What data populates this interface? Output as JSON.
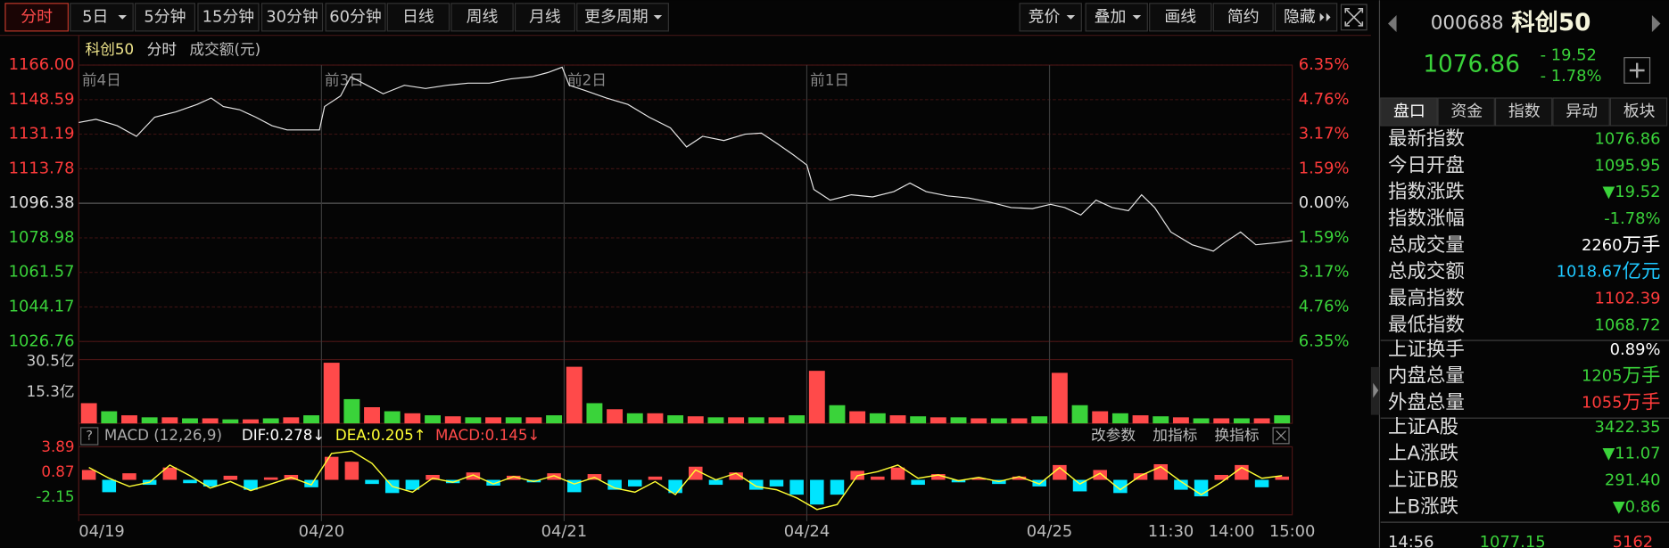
{
  "toolbar": {
    "left": [
      "分时",
      "5日",
      "5分钟",
      "15分钟",
      "30分钟",
      "60分钟",
      "日线",
      "周线",
      "月线",
      "更多周期"
    ],
    "right": [
      "竞价",
      "叠加",
      "画线",
      "简约",
      "隐藏"
    ]
  },
  "chart_data": {
    "type": "line",
    "title": "科创50",
    "subtitle": "分时",
    "volume_label": "成交额(元)",
    "day_labels": [
      "前4日",
      "前3日",
      "前2日",
      "前1日"
    ],
    "x": [
      0,
      17,
      38,
      57,
      75,
      96,
      117,
      131,
      143,
      159,
      175,
      191,
      206,
      222,
      238,
      243,
      259,
      269,
      285,
      301,
      322,
      343,
      364,
      385,
      406,
      427,
      448,
      464,
      478,
      485,
      501,
      522,
      543,
      564,
      585,
      601,
      617,
      638,
      659,
      675,
      691,
      706,
      720,
      727,
      743,
      764,
      785,
      806,
      822,
      838,
      859,
      880,
      901,
      922,
      943,
      961,
      975,
      991,
      1006,
      1022,
      1038,
      1051,
      1064,
      1080,
      1101,
      1122,
      1133,
      1149,
      1164,
      1185,
      1200
    ],
    "values": [
      1137.08,
      1138.69,
      1135.48,
      1130.12,
      1139.76,
      1142.44,
      1146.19,
      1149.4,
      1145.12,
      1143.51,
      1139.76,
      1135.48,
      1133.33,
      1133.33,
      1133.33,
      1145.12,
      1150.47,
      1160.11,
      1155.83,
      1151.54,
      1155.83,
      1154.22,
      1155.83,
      1156.9,
      1156.9,
      1159.04,
      1160.11,
      1162.25,
      1164.93,
      1155.83,
      1153.15,
      1149.4,
      1146.19,
      1139.76,
      1134.41,
      1124.77,
      1130.12,
      1127.98,
      1131.19,
      1131.73,
      1126.37,
      1121.02,
      1115.67,
      1103.35,
      1098.0,
      1100.67,
      1099.6,
      1102.28,
      1106.57,
      1102.28,
      1100.14,
      1099.07,
      1096.93,
      1094.25,
      1093.71,
      1095.85,
      1094.25,
      1090.49,
      1097.99,
      1094.25,
      1092.64,
      1100.67,
      1094.25,
      1081.93,
      1075.5,
      1072.29,
      1076.57,
      1081.93,
      1075.5,
      1076.57,
      1077.64
    ],
    "color": "#e6e6e6",
    "up_color": "#ff3b3b",
    "down_color": "#3ad33a",
    "grid": true,
    "xlim": [
      0,
      1200
    ],
    "xticks": [
      {
        "value": 0,
        "label": "04/19"
      },
      {
        "value": 240,
        "label": "04/20"
      },
      {
        "value": 480,
        "label": "04/21"
      },
      {
        "value": 720,
        "label": "04/24"
      },
      {
        "value": 960,
        "label": "04/25"
      },
      {
        "value": 1080,
        "label": "11:30"
      },
      {
        "value": 1140,
        "label": "14:00"
      },
      {
        "value": 1200,
        "label": "15:00"
      }
    ],
    "ylim": [
      1026.76,
      1166
    ],
    "yticks": [
      {
        "value": 1166,
        "label": "1166.00"
      },
      1148.59,
      1131.19,
      1113.78,
      1096.38,
      1078.98,
      1061.57,
      1044.17,
      1026.76
    ],
    "y2lim": [
      -6.35,
      6.35
    ],
    "y2ticks": [
      {
        "value": 6.35,
        "label": "6.35%"
      },
      {
        "value": 4.76,
        "label": "4.76%"
      },
      {
        "value": 3.17,
        "label": "3.17%"
      },
      {
        "value": 1.59,
        "label": "1.59%"
      },
      {
        "value": 0,
        "label": "0.00%"
      },
      {
        "value": -1.59,
        "label": "1.59%"
      },
      {
        "value": -3.17,
        "label": "3.17%"
      },
      {
        "value": -4.76,
        "label": "4.76%"
      },
      {
        "value": -6.35,
        "label": "6.35%"
      }
    ],
    "volume": {
      "values": [
        10,
        6,
        4,
        3,
        3,
        2.5,
        2.5,
        2,
        2,
        2.5,
        3,
        4,
        30,
        12,
        8,
        6,
        5,
        4,
        3.5,
        3,
        3,
        3,
        3,
        4,
        28,
        10,
        7,
        5,
        5,
        4,
        3.5,
        3,
        3,
        3,
        3,
        4,
        26,
        9,
        6,
        5,
        4,
        3.5,
        3,
        3,
        2.5,
        2.5,
        2.5,
        3.5,
        25,
        9,
        6,
        5,
        4,
        3.5,
        3,
        2.5,
        2.5,
        2.5,
        2.5,
        4
      ],
      "ylim": [
        0,
        30.5
      ],
      "yticks": [
        {
          "value": 30.5,
          "label": "30.5亿"
        },
        {
          "value": 15.3,
          "label": "15.3亿"
        }
      ],
      "colors": [
        "#ff4a4a",
        "#3ad33a"
      ]
    },
    "macd": {
      "name": "MACD (12,26,9)",
      "dif_label": "DIF:0.278↓",
      "dea_label": "DEA:0.205↑",
      "macd_label": "MACD:0.145↓",
      "buttons": [
        "改参数",
        "加指标",
        "换指标"
      ],
      "values": [
        1.2,
        -1.5,
        0.8,
        -0.6,
        1.5,
        -0.4,
        -0.8,
        0.5,
        -1.2,
        0.3,
        0.6,
        -0.9,
        2.8,
        2.2,
        -0.5,
        -1.6,
        -1.2,
        0.6,
        -0.4,
        0.9,
        -0.7,
        0.5,
        -0.3,
        0.8,
        -1.5,
        0.7,
        -1.2,
        -0.8,
        0.4,
        -1.6,
        1.6,
        -0.6,
        0.9,
        -1.2,
        -0.8,
        -1.8,
        -3.0,
        -1.8,
        1.1,
        0.4,
        1.5,
        -0.6,
        0.7,
        -0.3,
        0.2,
        -0.5,
        0.4,
        -0.8,
        1.8,
        -1.4,
        1.2,
        -1.6,
        0.8,
        1.9,
        -1.2,
        -2.0,
        0.6,
        1.8,
        -0.9,
        0.4
      ],
      "dif": [
        1.5,
        0.2,
        -0.8,
        -0.3,
        1.8,
        0.5,
        -1.0,
        -0.2,
        -1.3,
        -0.5,
        0.3,
        -0.6,
        3.2,
        3.5,
        2.0,
        -0.8,
        -1.5,
        0.2,
        -0.3,
        0.6,
        -0.5,
        0.4,
        -0.2,
        0.5,
        -0.5,
        0.3,
        -1.0,
        -1.5,
        -0.2,
        -1.8,
        1.2,
        0.0,
        0.8,
        -0.8,
        -1.2,
        -2.2,
        -3.6,
        -3.0,
        0.5,
        1.0,
        1.8,
        0.2,
        0.6,
        -0.1,
        0.3,
        -0.2,
        0.4,
        -0.5,
        1.5,
        -0.5,
        0.8,
        -1.2,
        0.5,
        1.6,
        -0.2,
        -1.8,
        -0.3,
        1.5,
        0.2,
        0.5
      ],
      "pos_color": "#ff4a4a",
      "neg_color": "#00e5ff",
      "dif_color": "#ffffff",
      "dea_color": "#ffff33",
      "ylim": [
        -4.25,
        4.02
      ],
      "yticks": [
        3.89,
        0.87,
        -2.15
      ]
    }
  },
  "panel": {
    "code": "000688",
    "name": "科创50",
    "price": "1076.86",
    "change": "- 19.52",
    "change_pct": "- 1.78%",
    "tabs": [
      "盘口",
      "资金",
      "指数",
      "异动",
      "板块"
    ],
    "groups": [
      [
        {
          "label": "最新指数",
          "value": "1076.86",
          "color": "#3ad33a"
        },
        {
          "label": "今日开盘",
          "value": "1095.95",
          "color": "#3ad33a"
        },
        {
          "label": "指数涨跌",
          "value": "▼19.52",
          "color": "#3ad33a"
        },
        {
          "label": "指数涨幅",
          "value": "-1.78%",
          "color": "#3ad33a"
        },
        {
          "label": "总成交量",
          "value": "2260",
          "unit": "万手",
          "color": "#ffffff"
        },
        {
          "label": "总成交额",
          "value": "1018.67",
          "unit": "亿元",
          "color": "#1ec8ff"
        },
        {
          "label": "最高指数",
          "value": "1102.39",
          "color": "#ff3b3b"
        },
        {
          "label": "最低指数",
          "value": "1068.72",
          "color": "#3ad33a"
        }
      ],
      [
        {
          "label": "上证换手",
          "value": "0.89%",
          "color": "#ffffff"
        },
        {
          "label": "内盘总量",
          "value": "1205",
          "unit": "万手",
          "color": "#3ad33a"
        },
        {
          "label": "外盘总量",
          "value": "1055",
          "unit": "万手",
          "color": "#ff3b3b"
        }
      ],
      [
        {
          "label": "上证A股",
          "value": "3422.35",
          "color": "#3ad33a"
        },
        {
          "label": "上A涨跌",
          "value": "▼11.07",
          "color": "#3ad33a"
        },
        {
          "label": "上证B股",
          "value": "291.40",
          "color": "#3ad33a"
        },
        {
          "label": "上B涨跌",
          "value": "▼0.86",
          "color": "#3ad33a"
        }
      ]
    ],
    "tick": {
      "time": "14:56",
      "price": "1077.15",
      "volume": "5162"
    }
  }
}
